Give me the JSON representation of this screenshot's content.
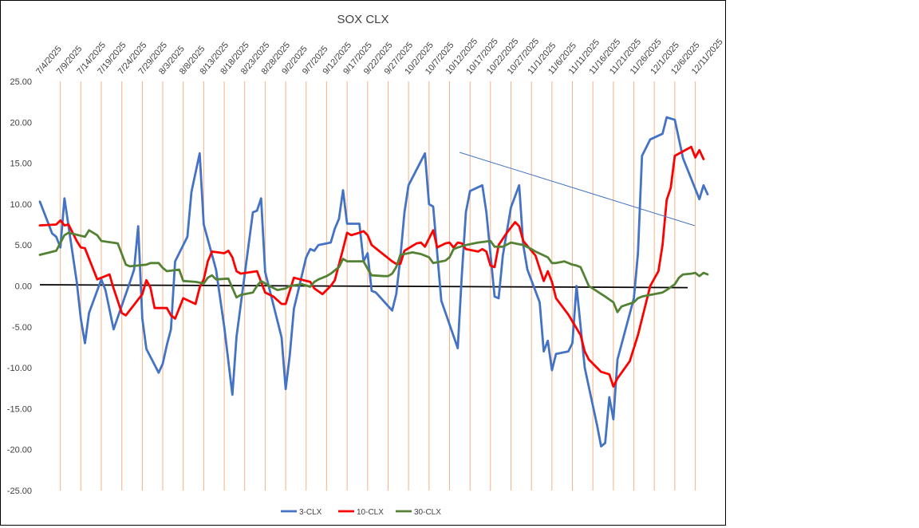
{
  "chart_data": {
    "type": "line",
    "title": "SOX CLX",
    "xlabel": "",
    "ylabel": "",
    "ylim": [
      -25,
      25
    ],
    "yticks": [
      "25.00",
      "20.00",
      "15.00",
      "10.00",
      "5.00",
      "0.00",
      "-5.00",
      "-10.00",
      "-15.00",
      "-20.00",
      "-25.00"
    ],
    "ytick_values": [
      25,
      20,
      15,
      10,
      5,
      0,
      -5,
      -10,
      -15,
      -20,
      -25
    ],
    "xtick_labels": [
      "7/4/2025",
      "7/9/2025",
      "7/14/2025",
      "7/19/2025",
      "7/24/2025",
      "7/29/2025",
      "8/3/2025",
      "8/8/2025",
      "8/13/2025",
      "8/18/2025",
      "8/23/2025",
      "8/28/2025",
      "9/2/2025",
      "9/7/2025",
      "9/12/2025",
      "9/17/2025",
      "9/22/2025",
      "9/27/2025",
      "10/2/2025",
      "10/7/2025",
      "10/12/2025",
      "10/17/2025",
      "10/22/2025",
      "10/27/2025",
      "11/1/2025",
      "11/6/2025",
      "11/11/2025",
      "11/16/2025",
      "11/21/2025",
      "11/26/2025",
      "12/1/2025",
      "12/6/2025",
      "12/11/2025"
    ],
    "grid": "vertical",
    "legend": "bottom",
    "series": [
      {
        "name": "3-CLX",
        "color": "#4472C4",
        "points": [
          [
            0,
            10.3
          ],
          [
            3,
            6.4
          ],
          [
            4,
            6.0
          ],
          [
            5,
            4.7
          ],
          [
            6,
            10.7
          ],
          [
            9,
            0.5
          ],
          [
            10,
            -4.0
          ],
          [
            11,
            -7.0
          ],
          [
            12,
            -3.3
          ],
          [
            15,
            0.8
          ],
          [
            16,
            -0.5
          ],
          [
            18,
            -5.3
          ],
          [
            22,
            0.5
          ],
          [
            23,
            2.0
          ],
          [
            24,
            7.3
          ],
          [
            25,
            -4.0
          ],
          [
            26,
            -7.7
          ],
          [
            29,
            -10.6
          ],
          [
            30,
            -9.5
          ],
          [
            31,
            -7.2
          ],
          [
            32,
            -5.3
          ],
          [
            33,
            3.0
          ],
          [
            36,
            6.0
          ],
          [
            37,
            11.5
          ],
          [
            39,
            16.2
          ],
          [
            40,
            7.5
          ],
          [
            43,
            2.0
          ],
          [
            45,
            -5.0
          ],
          [
            47,
            -13.3
          ],
          [
            48,
            -6.2
          ],
          [
            52,
            9.0
          ],
          [
            53,
            9.2
          ],
          [
            54,
            10.7
          ],
          [
            55,
            1.7
          ],
          [
            59,
            -6.3
          ],
          [
            60,
            -12.6
          ],
          [
            61,
            -8.5
          ],
          [
            62,
            -2.8
          ],
          [
            65,
            3.5
          ],
          [
            66,
            4.5
          ],
          [
            67,
            4.3
          ],
          [
            68,
            5.0
          ],
          [
            71,
            5.3
          ],
          [
            72,
            7.0
          ],
          [
            73,
            8.2
          ],
          [
            74,
            11.7
          ],
          [
            75,
            7.6
          ],
          [
            78,
            7.6
          ],
          [
            79,
            3.0
          ],
          [
            80,
            4.0
          ],
          [
            81,
            -0.6
          ],
          [
            82,
            -0.8
          ],
          [
            86,
            -3.0
          ],
          [
            87,
            -1.0
          ],
          [
            88,
            3.5
          ],
          [
            89,
            9.0
          ],
          [
            90,
            12.3
          ],
          [
            94,
            16.2
          ],
          [
            95,
            10.0
          ],
          [
            96,
            9.7
          ],
          [
            98,
            -1.8
          ],
          [
            102,
            -7.6
          ],
          [
            103,
            1.3
          ],
          [
            104,
            9.0
          ],
          [
            105,
            11.6
          ],
          [
            108,
            12.3
          ],
          [
            109,
            9.0
          ],
          [
            111,
            -1.3
          ],
          [
            112,
            -1.5
          ],
          [
            113,
            3.7
          ],
          [
            115,
            9.6
          ],
          [
            117,
            12.3
          ],
          [
            118,
            5.0
          ],
          [
            119,
            2.0
          ],
          [
            122,
            -2.0
          ],
          [
            123,
            -8.0
          ],
          [
            124,
            -6.7
          ],
          [
            125,
            -10.3
          ],
          [
            126,
            -8.3
          ],
          [
            129,
            -8.0
          ],
          [
            130,
            -7.0
          ],
          [
            131,
            0.0
          ],
          [
            133,
            -10.0
          ],
          [
            136,
            -17.0
          ],
          [
            137,
            -19.6
          ],
          [
            138,
            -19.2
          ],
          [
            139,
            -13.6
          ],
          [
            140,
            -16.3
          ],
          [
            141,
            -9.0
          ],
          [
            145,
            -1.5
          ],
          [
            146,
            4.0
          ],
          [
            147,
            15.9
          ],
          [
            149,
            17.9
          ],
          [
            152,
            18.6
          ],
          [
            153,
            20.6
          ],
          [
            155,
            20.3
          ],
          [
            157,
            15.6
          ],
          [
            161,
            10.6
          ],
          [
            162,
            12.3
          ],
          [
            163,
            11.2
          ]
        ]
      },
      {
        "name": "10-CLX",
        "color": "#FF0000",
        "points": [
          [
            0,
            7.4
          ],
          [
            4,
            7.5
          ],
          [
            5,
            8.0
          ],
          [
            6,
            7.4
          ],
          [
            7,
            7.5
          ],
          [
            9,
            5.5
          ],
          [
            10,
            4.7
          ],
          [
            11,
            4.6
          ],
          [
            14,
            0.8
          ],
          [
            17,
            1.4
          ],
          [
            18,
            -0.3
          ],
          [
            20,
            -3.3
          ],
          [
            21,
            -3.6
          ],
          [
            25,
            -1.0
          ],
          [
            26,
            0.7
          ],
          [
            27,
            -0.2
          ],
          [
            28,
            -2.7
          ],
          [
            31,
            -2.7
          ],
          [
            32,
            -3.6
          ],
          [
            33,
            -4.0
          ],
          [
            35,
            -1.5
          ],
          [
            38,
            -2.2
          ],
          [
            39,
            -0.2
          ],
          [
            40,
            0.8
          ],
          [
            41,
            3.0
          ],
          [
            42,
            4.2
          ],
          [
            45,
            4.0
          ],
          [
            46,
            4.3
          ],
          [
            47,
            3.5
          ],
          [
            48,
            1.8
          ],
          [
            49,
            1.5
          ],
          [
            53,
            1.8
          ],
          [
            54,
            0.5
          ],
          [
            55,
            -0.8
          ],
          [
            57,
            -1.3
          ],
          [
            59,
            -2.2
          ],
          [
            60,
            -2.2
          ],
          [
            62,
            1.0
          ],
          [
            66,
            0.5
          ],
          [
            67,
            -0.3
          ],
          [
            69,
            -1.0
          ],
          [
            71,
            0.0
          ],
          [
            72,
            0.7
          ],
          [
            74,
            4.5
          ],
          [
            75,
            6.5
          ],
          [
            76,
            6.2
          ],
          [
            78,
            6.5
          ],
          [
            79,
            6.7
          ],
          [
            80,
            6.2
          ],
          [
            81,
            5.0
          ],
          [
            84,
            3.8
          ],
          [
            86,
            3.0
          ],
          [
            87,
            2.7
          ],
          [
            88,
            2.7
          ],
          [
            89,
            4.3
          ],
          [
            92,
            5.2
          ],
          [
            93,
            5.3
          ],
          [
            94,
            4.8
          ],
          [
            96,
            6.8
          ],
          [
            97,
            4.7
          ],
          [
            99,
            5.2
          ],
          [
            100,
            5.3
          ],
          [
            101,
            4.7
          ],
          [
            102,
            5.3
          ],
          [
            103,
            5.2
          ],
          [
            104,
            4.5
          ],
          [
            107,
            4.2
          ],
          [
            108,
            4.5
          ],
          [
            109,
            4.2
          ],
          [
            110,
            2.5
          ],
          [
            111,
            2.3
          ],
          [
            112,
            5.0
          ],
          [
            114,
            6.5
          ],
          [
            116,
            7.8
          ],
          [
            117,
            7.3
          ],
          [
            118,
            5.5
          ],
          [
            120,
            4.3
          ],
          [
            121,
            3.7
          ],
          [
            123,
            0.6
          ],
          [
            124,
            1.8
          ],
          [
            125,
            0.5
          ],
          [
            126,
            -1.5
          ],
          [
            129,
            -3.5
          ],
          [
            132,
            -6.0
          ],
          [
            133,
            -8.0
          ],
          [
            134,
            -9.0
          ],
          [
            137,
            -10.5
          ],
          [
            139,
            -10.8
          ],
          [
            140,
            -12.3
          ],
          [
            141,
            -11.3
          ],
          [
            144,
            -9.2
          ],
          [
            146,
            -6.0
          ],
          [
            149,
            0.0
          ],
          [
            151,
            1.8
          ],
          [
            152,
            5.0
          ],
          [
            153,
            10.5
          ],
          [
            154,
            12.0
          ],
          [
            155,
            15.9
          ],
          [
            159,
            17.0
          ],
          [
            160,
            15.7
          ],
          [
            161,
            16.6
          ],
          [
            162,
            15.5
          ]
        ]
      },
      {
        "name": "30-CLX",
        "color": "#548235",
        "points": [
          [
            0,
            3.8
          ],
          [
            4,
            4.3
          ],
          [
            6,
            6.2
          ],
          [
            7,
            6.5
          ],
          [
            11,
            6.0
          ],
          [
            12,
            6.8
          ],
          [
            14,
            6.2
          ],
          [
            15,
            5.5
          ],
          [
            19,
            5.2
          ],
          [
            21,
            2.6
          ],
          [
            22,
            2.4
          ],
          [
            26,
            2.6
          ],
          [
            27,
            2.8
          ],
          [
            29,
            2.8
          ],
          [
            30,
            2.2
          ],
          [
            31,
            1.8
          ],
          [
            34,
            2.0
          ],
          [
            35,
            0.6
          ],
          [
            38,
            0.5
          ],
          [
            40,
            0.3
          ],
          [
            41,
            1.0
          ],
          [
            42,
            1.3
          ],
          [
            43,
            0.8
          ],
          [
            46,
            0.9
          ],
          [
            48,
            -1.4
          ],
          [
            49,
            -1.1
          ],
          [
            52,
            -0.8
          ],
          [
            53,
            0.0
          ],
          [
            54,
            0.6
          ],
          [
            56,
            0.0
          ],
          [
            58,
            -0.5
          ],
          [
            60,
            -0.3
          ],
          [
            61,
            0.0
          ],
          [
            64,
            0.2
          ],
          [
            66,
            -0.1
          ],
          [
            67,
            0.5
          ],
          [
            68,
            0.8
          ],
          [
            70,
            1.2
          ],
          [
            71,
            1.5
          ],
          [
            73,
            2.3
          ],
          [
            74,
            3.3
          ],
          [
            75,
            3.0
          ],
          [
            79,
            3.0
          ],
          [
            80,
            2.1
          ],
          [
            81,
            1.3
          ],
          [
            84,
            1.2
          ],
          [
            85,
            1.2
          ],
          [
            86,
            1.5
          ],
          [
            87,
            2.3
          ],
          [
            88,
            3.8
          ],
          [
            91,
            4.1
          ],
          [
            92,
            4.0
          ],
          [
            93,
            3.9
          ],
          [
            95,
            3.5
          ],
          [
            96,
            2.8
          ],
          [
            99,
            3.1
          ],
          [
            100,
            3.5
          ],
          [
            101,
            4.5
          ],
          [
            102,
            4.7
          ],
          [
            104,
            5.0
          ],
          [
            106,
            5.2
          ],
          [
            107,
            5.3
          ],
          [
            110,
            5.5
          ],
          [
            111,
            4.8
          ],
          [
            113,
            4.8
          ],
          [
            115,
            5.3
          ],
          [
            118,
            5.0
          ],
          [
            120,
            4.5
          ],
          [
            121,
            4.2
          ],
          [
            124,
            3.5
          ],
          [
            125,
            2.8
          ],
          [
            126,
            2.8
          ],
          [
            128,
            3.0
          ],
          [
            130,
            2.6
          ],
          [
            131,
            2.5
          ],
          [
            132,
            2.3
          ],
          [
            134,
            0.0
          ],
          [
            138,
            -1.3
          ],
          [
            140,
            -2.0
          ],
          [
            141,
            -3.2
          ],
          [
            142,
            -2.5
          ],
          [
            145,
            -2.0
          ],
          [
            146,
            -1.5
          ],
          [
            147,
            -1.3
          ],
          [
            150,
            -1.0
          ],
          [
            152,
            -0.8
          ],
          [
            153,
            -0.5
          ],
          [
            155,
            0.2
          ],
          [
            156,
            1.0
          ],
          [
            157,
            1.4
          ],
          [
            159,
            1.5
          ],
          [
            160,
            1.6
          ],
          [
            161,
            1.2
          ],
          [
            162,
            1.6
          ],
          [
            163,
            1.4
          ]
        ]
      }
    ]
  }
}
